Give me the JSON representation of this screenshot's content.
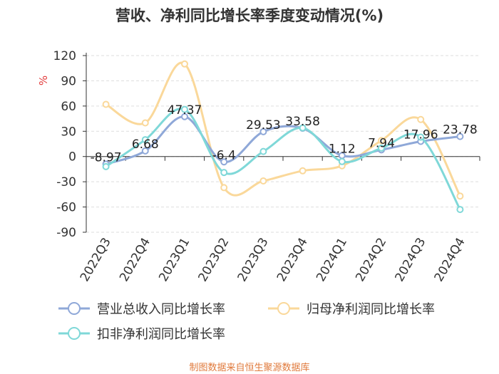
{
  "title": "营收、净利同比增长率季度变动情况(%)",
  "source": "制图数据来自恒生聚源数据库",
  "chart_data": {
    "type": "line",
    "ylabel": "%",
    "ylim": [
      -90,
      120
    ],
    "yticks": [
      -90,
      -60,
      -30,
      0,
      30,
      60,
      90,
      120
    ],
    "categories": [
      "2022Q3",
      "2022Q4",
      "2023Q1",
      "2023Q2",
      "2023Q3",
      "2023Q4",
      "2024Q1",
      "2024Q2",
      "2024Q3",
      "2024Q4"
    ],
    "grid": true,
    "legend_position": "bottom",
    "series": [
      {
        "name": "营业总收入同比增长率",
        "color": "#8fa8d8",
        "labeled": true,
        "values": [
          -8.97,
          6.68,
          47.37,
          -6.4,
          29.53,
          33.58,
          1.12,
          7.94,
          17.96,
          23.78
        ],
        "labels": [
          "-8.97",
          "6.68",
          "47.37",
          "-6.4",
          "29.53",
          "33.58",
          "1.12",
          "7.94",
          "17.96",
          "23.78"
        ]
      },
      {
        "name": "归母净利润同比增长率",
        "color": "#fad89a",
        "labeled": false,
        "values": [
          62,
          40,
          110,
          -37,
          -29,
          -17,
          -11,
          19,
          44,
          -47
        ]
      },
      {
        "name": "扣非净利润同比增长率",
        "color": "#7fd8d8",
        "labeled": false,
        "values": [
          -12,
          20,
          56,
          -19,
          6,
          34,
          -6,
          10,
          23,
          -63
        ]
      }
    ]
  }
}
